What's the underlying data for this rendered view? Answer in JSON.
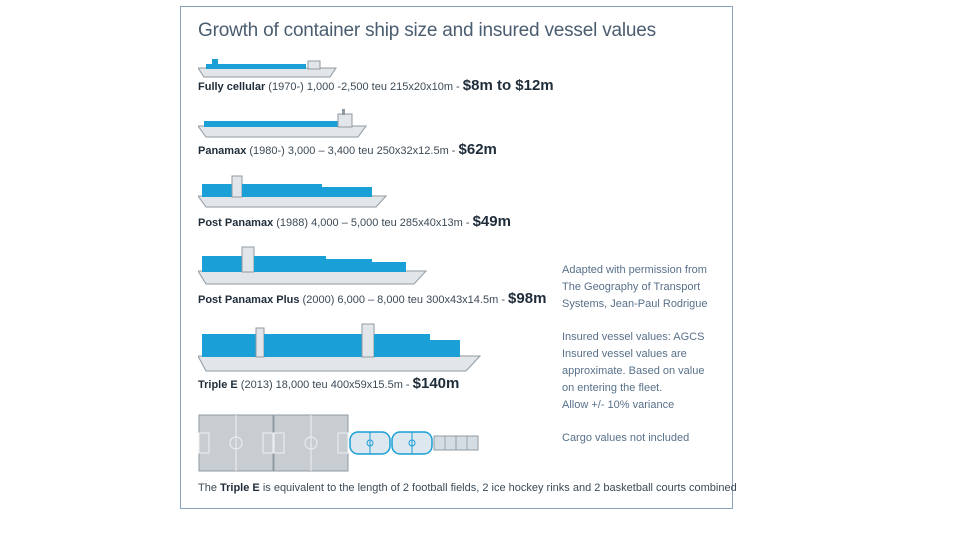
{
  "title": "Growth of container ship size and insured vessel values",
  "ships": [
    {
      "name": "Fully cellular",
      "detail": " (1970-) 1,000 -2,500 teu 215x20x10m - ",
      "value": "$8m to $12m"
    },
    {
      "name": "Panamax",
      "detail": " (1980-) 3,000 – 3,400 teu 250x32x12.5m - ",
      "value": "$62m"
    },
    {
      "name": "Post Panamax",
      "detail": " (1988) 4,000 – 5,000 teu 285x40x13m - ",
      "value": "$49m"
    },
    {
      "name": "Post Panamax Plus",
      "detail": " (2000) 6,000 – 8,000 teu 300x43x14.5m - ",
      "value": "$98m"
    },
    {
      "name": "Triple E",
      "detail": " (2013) 18,000 teu 400x59x15.5m - ",
      "value": "$140m"
    }
  ],
  "notes": {
    "adapted": [
      "Adapted with permission from",
      "The Geography of Transport",
      "Systems, Jean-Paul Rodrigue"
    ],
    "insured": [
      "Insured vessel values: AGCS",
      "Insured vessel values are",
      "approximate. Based on value",
      "on entering the fleet.",
      "Allow +/- 10% variance"
    ],
    "cargo": "Cargo values not included"
  },
  "footer": {
    "prefix": "The ",
    "bold": "Triple E",
    "suffix": " is equivalent to the length of 2 football fields, 2 ice hockey rinks and 2 basketball courts combined"
  },
  "colors": {
    "hull": "#e3e6e9",
    "hull_stroke": "#8f9aa3",
    "cargo": "#1a9fd6",
    "frame": "#8aa3bd"
  }
}
